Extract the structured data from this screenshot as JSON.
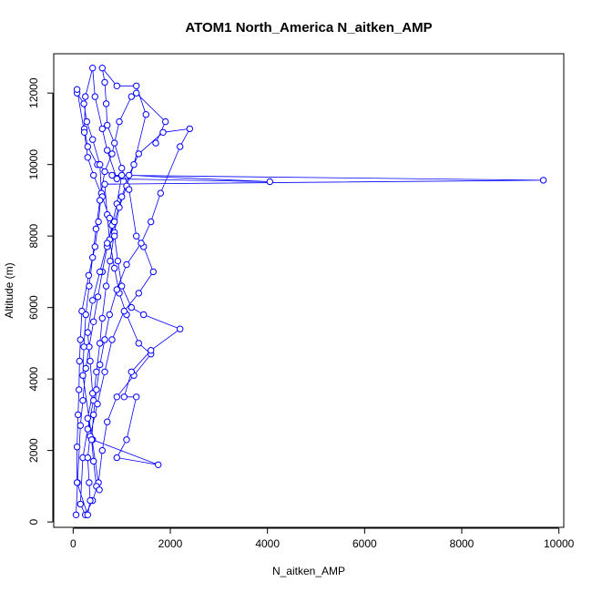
{
  "chart_data": {
    "type": "line",
    "title": "ATOM1 North_America N_aitken_AMP",
    "xlabel": "N_aitken_AMP",
    "ylabel": "Altitude (m)",
    "xlim": [
      -400,
      10100
    ],
    "ylim": [
      -150,
      13100
    ],
    "xticks": [
      0,
      2000,
      4000,
      6000,
      8000,
      10000
    ],
    "yticks": [
      0,
      2000,
      4000,
      6000,
      8000,
      10000,
      12000
    ],
    "grid": false,
    "legend": "none",
    "color": "#0000ff",
    "series": [
      {
        "marker": "open-circle",
        "points": [
          [
            60,
            200
          ],
          [
            90,
            1100
          ],
          [
            150,
            2700
          ],
          [
            200,
            3400
          ],
          [
            260,
            4300
          ],
          [
            330,
            4900
          ],
          [
            420,
            5600
          ],
          [
            510,
            6300
          ],
          [
            600,
            7000
          ],
          [
            700,
            7700
          ],
          [
            800,
            8300
          ],
          [
            900,
            8900
          ],
          [
            1000,
            9700
          ],
          [
            4050,
            9520
          ],
          [
            900,
            9600
          ],
          [
            700,
            10400
          ],
          [
            600,
            11000
          ],
          [
            450,
            11900
          ],
          [
            400,
            12700
          ],
          [
            250,
            11900
          ],
          [
            230,
            11000
          ],
          [
            300,
            10500
          ],
          [
            500,
            10000
          ],
          [
            800,
            9700
          ],
          [
            9680,
            9560
          ],
          [
            650,
            9450
          ],
          [
            700,
            8600
          ],
          [
            750,
            7900
          ],
          [
            850,
            7100
          ],
          [
            950,
            6400
          ],
          [
            1100,
            5800
          ],
          [
            1350,
            5000
          ],
          [
            1600,
            4700
          ],
          [
            1250,
            4100
          ],
          [
            900,
            3500
          ],
          [
            700,
            2800
          ],
          [
            600,
            2000
          ],
          [
            520,
            1100
          ],
          [
            400,
            600
          ],
          [
            250,
            200
          ],
          [
            150,
            500
          ],
          [
            200,
            1800
          ],
          [
            300,
            2600
          ],
          [
            420,
            3400
          ],
          [
            480,
            4200
          ],
          [
            550,
            5000
          ],
          [
            600,
            5700
          ],
          [
            680,
            6600
          ],
          [
            760,
            7300
          ],
          [
            850,
            8100
          ],
          [
            950,
            8800
          ],
          [
            1100,
            9400
          ],
          [
            1250,
            10000
          ],
          [
            1500,
            11400
          ],
          [
            1300,
            12200
          ],
          [
            900,
            12200
          ],
          [
            600,
            12700
          ],
          [
            650,
            12300
          ],
          [
            680,
            11700
          ],
          [
            700,
            11100
          ],
          [
            850,
            10600
          ],
          [
            1000,
            9900
          ],
          [
            1150,
            9300
          ],
          [
            1300,
            8000
          ],
          [
            1450,
            7700
          ],
          [
            1650,
            7000
          ],
          [
            1350,
            6400
          ],
          [
            1050,
            5900
          ],
          [
            800,
            5100
          ],
          [
            650,
            4200
          ],
          [
            500,
            3300
          ],
          [
            350,
            2400
          ],
          [
            300,
            1800
          ],
          [
            330,
            1100
          ],
          [
            350,
            600
          ],
          [
            300,
            200
          ],
          [
            80,
            1100
          ],
          [
            80,
            2100
          ],
          [
            100,
            3000
          ],
          [
            120,
            3700
          ],
          [
            130,
            4500
          ],
          [
            150,
            5100
          ],
          [
            180,
            5900
          ],
          [
            320,
            6900
          ],
          [
            450,
            7700
          ],
          [
            520,
            8400
          ],
          [
            580,
            9200
          ],
          [
            550,
            10000
          ],
          [
            400,
            10700
          ],
          [
            280,
            11200
          ],
          [
            220,
            11700
          ],
          [
            80,
            12000
          ],
          [
            80,
            12100
          ],
          [
            230,
            10900
          ],
          [
            300,
            10200
          ],
          [
            420,
            9700
          ],
          [
            600,
            9100
          ],
          [
            750,
            8500
          ],
          [
            850,
            8000
          ],
          [
            920,
            7300
          ],
          [
            1000,
            6600
          ],
          [
            1200,
            6000
          ],
          [
            1450,
            5800
          ],
          [
            2200,
            5400
          ],
          [
            1600,
            4800
          ],
          [
            1200,
            4200
          ],
          [
            1050,
            3500
          ],
          [
            1300,
            3500
          ],
          [
            1100,
            2300
          ],
          [
            900,
            1800
          ],
          [
            1750,
            1600
          ],
          [
            400,
            2300
          ],
          [
            300,
            2900
          ],
          [
            400,
            3600
          ],
          [
            350,
            4500
          ],
          [
            300,
            5300
          ],
          [
            400,
            6200
          ],
          [
            550,
            7000
          ],
          [
            700,
            7800
          ],
          [
            850,
            8400
          ],
          [
            1000,
            9100
          ],
          [
            1150,
            9700
          ],
          [
            1350,
            10300
          ],
          [
            1850,
            10900
          ],
          [
            2400,
            11000
          ],
          [
            2200,
            10500
          ],
          [
            1800,
            9200
          ],
          [
            1600,
            8400
          ],
          [
            1400,
            7800
          ],
          [
            1100,
            7200
          ],
          [
            900,
            6500
          ],
          [
            750,
            5800
          ],
          [
            650,
            5100
          ],
          [
            550,
            4400
          ],
          [
            480,
            3700
          ],
          [
            420,
            3000
          ],
          [
            380,
            2300
          ],
          [
            420,
            1700
          ],
          [
            480,
            1000
          ],
          [
            540,
            900
          ],
          [
            200,
            4100
          ],
          [
            220,
            4900
          ],
          [
            260,
            5800
          ],
          [
            330,
            6600
          ],
          [
            400,
            7400
          ],
          [
            470,
            8200
          ],
          [
            550,
            9000
          ],
          [
            650,
            9800
          ],
          [
            800,
            10300
          ],
          [
            950,
            11200
          ],
          [
            1200,
            11900
          ],
          [
            1300,
            12000
          ],
          [
            1900,
            11200
          ],
          [
            1700,
            10600
          ]
        ]
      }
    ]
  }
}
